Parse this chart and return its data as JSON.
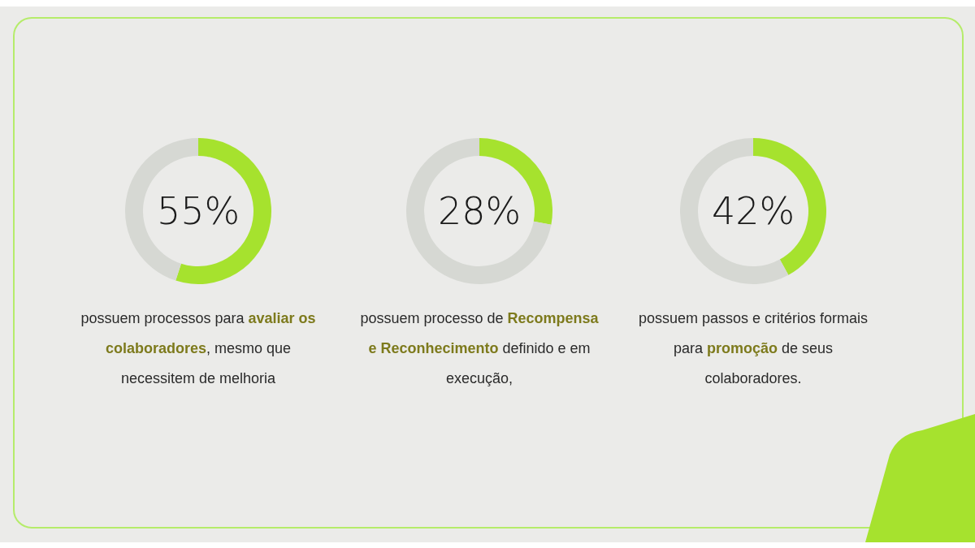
{
  "chart_data": [
    {
      "type": "donut",
      "categories": [
        null,
        null
      ],
      "values": [
        55,
        45
      ],
      "colors": [
        "#a6e22e",
        "#d6d8d3"
      ],
      "value_labels": [
        "55%",
        null
      ],
      "annotations": [
        "possuem processos para ",
        "avaliar os colaboradores",
        ", mesmo que necessitem de melhoria"
      ]
    },
    {
      "type": "donut",
      "categories": [
        null,
        null
      ],
      "values": [
        28,
        72
      ],
      "colors": [
        "#a6e22e",
        "#d6d8d3"
      ],
      "value_labels": [
        "28%",
        null
      ],
      "annotations": [
        "possuem processo de ",
        "Recompensa e Reconhecimento",
        " definido e em execução,"
      ]
    },
    {
      "type": "donut",
      "categories": [
        null,
        null
      ],
      "values": [
        42,
        58
      ],
      "colors": [
        "#a6e22e",
        "#d6d8d3"
      ],
      "value_labels": [
        "42%",
        null
      ],
      "annotations": [
        "possuem passos e critérios formais para ",
        "promoção",
        " de seus colaboradores."
      ]
    }
  ]
}
